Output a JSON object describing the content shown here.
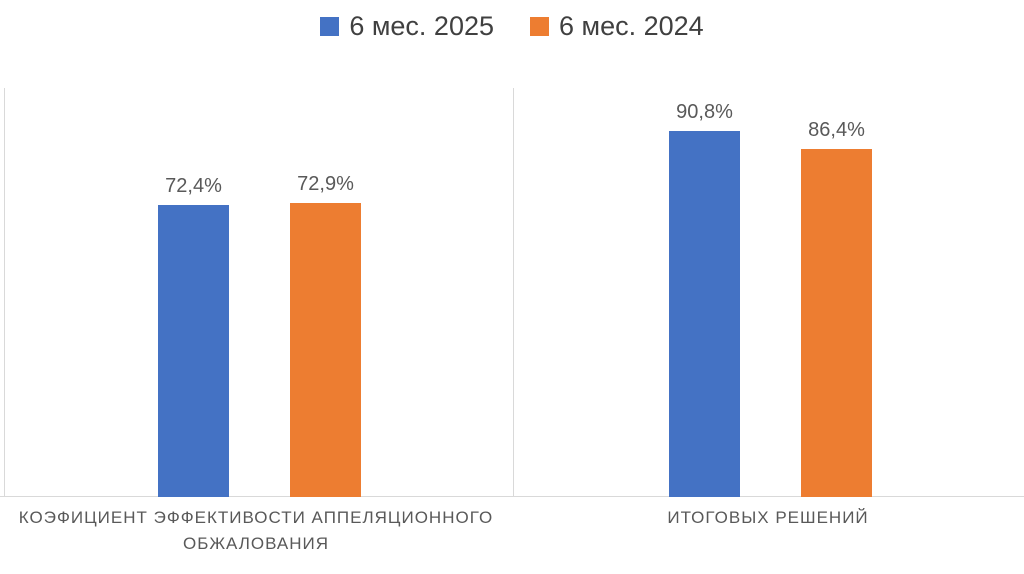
{
  "colors": {
    "series_2025": "#4472C4",
    "series_2024": "#ED7D31",
    "data_label": "#595959",
    "category_label": "#595959",
    "legend_text": "#404040",
    "gridline": "#D9D9D9",
    "background": "#FFFFFF"
  },
  "chart_data": {
    "type": "bar",
    "title": "",
    "categories": [
      "КОЭФИЦИЕНТ ЭФФЕКТИВОСТИ АППЕЛЯЦИОННОГО ОБЖАЛОВАНИЯ",
      "ИТОГОВЫХ РЕШЕНИЙ"
    ],
    "series": [
      {
        "name": "6 мес. 2025",
        "color": "#4472C4",
        "values": [
          72.4,
          90.8
        ]
      },
      {
        "name": "6 мес. 2024",
        "color": "#ED7D31",
        "values": [
          72.9,
          86.4
        ]
      }
    ],
    "data_labels": [
      [
        "72,4%",
        "72,9%"
      ],
      [
        "90,8%",
        "86,4%"
      ]
    ],
    "xlabel": "",
    "ylabel": "",
    "ylim": [
      0,
      100
    ],
    "grid": "vertical category separators only, light gray; horizontal baseline",
    "legend_position": "top-center",
    "value_format": "percent with comma decimal"
  }
}
